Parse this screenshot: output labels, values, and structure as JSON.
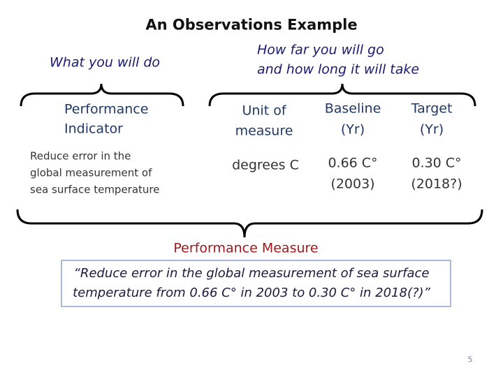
{
  "title": "An Observations Example",
  "left_label": "What you will do",
  "right_label": [
    "How far you will go",
    "and how long it will take"
  ],
  "table": {
    "headers": [
      [
        "Performance",
        "Indicator"
      ],
      [
        "Unit of",
        "measure"
      ],
      [
        "Baseline",
        "(Yr)"
      ],
      [
        "Target",
        "(Yr)"
      ]
    ],
    "row": [
      [
        "Reduce error in the",
        "global measurement of",
        "sea surface temperature"
      ],
      [
        "degrees C"
      ],
      [
        "0.66 C°",
        "(2003)"
      ],
      [
        "0.30 C°",
        "(2018?)"
      ]
    ]
  },
  "measure": {
    "title": "Performance Measure",
    "quote": [
      "“Reduce error in the global measurement of sea surface",
      "temperature from 0.66 C° in 2003 to 0.30 C° in 2018(?)”"
    ]
  },
  "page_number": "5"
}
